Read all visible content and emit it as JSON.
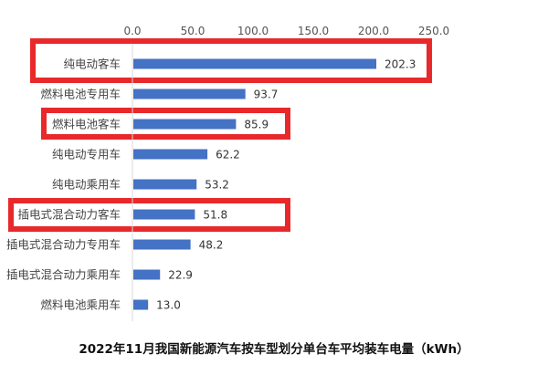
{
  "chart_data": {
    "type": "bar",
    "orientation": "horizontal",
    "title": "2022年11月我国新能源汽车按车型划分单台车平均装车电量（kWh）",
    "xlabel": "",
    "ylabel": "",
    "xlim": [
      0,
      250
    ],
    "x_ticks": [
      "0.0",
      "50.0",
      "100.0",
      "150.0",
      "200.0",
      "250.0"
    ],
    "x_axis_position": "top",
    "grid": false,
    "categories": [
      "纯电动客车",
      "燃料电池专用车",
      "燃料电池客车",
      "纯电动专用车",
      "纯电动乘用车",
      "插电式混合动力客车",
      "插电式混合动力专用车",
      "插电式混合动力乘用车",
      "燃料电池乘用车"
    ],
    "values": [
      202.3,
      93.7,
      85.9,
      62.2,
      53.2,
      51.8,
      48.2,
      22.9,
      13.0
    ],
    "data_labels": [
      "202.3",
      "93.7",
      "85.9",
      "62.2",
      "53.2",
      "51.8",
      "48.2",
      "22.9",
      "13.0"
    ],
    "highlighted_categories": [
      "纯电动客车",
      "燃料电池客车",
      "插电式混合动力客车"
    ],
    "bar_color": "#4472C4",
    "highlight_color": "#E8292B"
  }
}
